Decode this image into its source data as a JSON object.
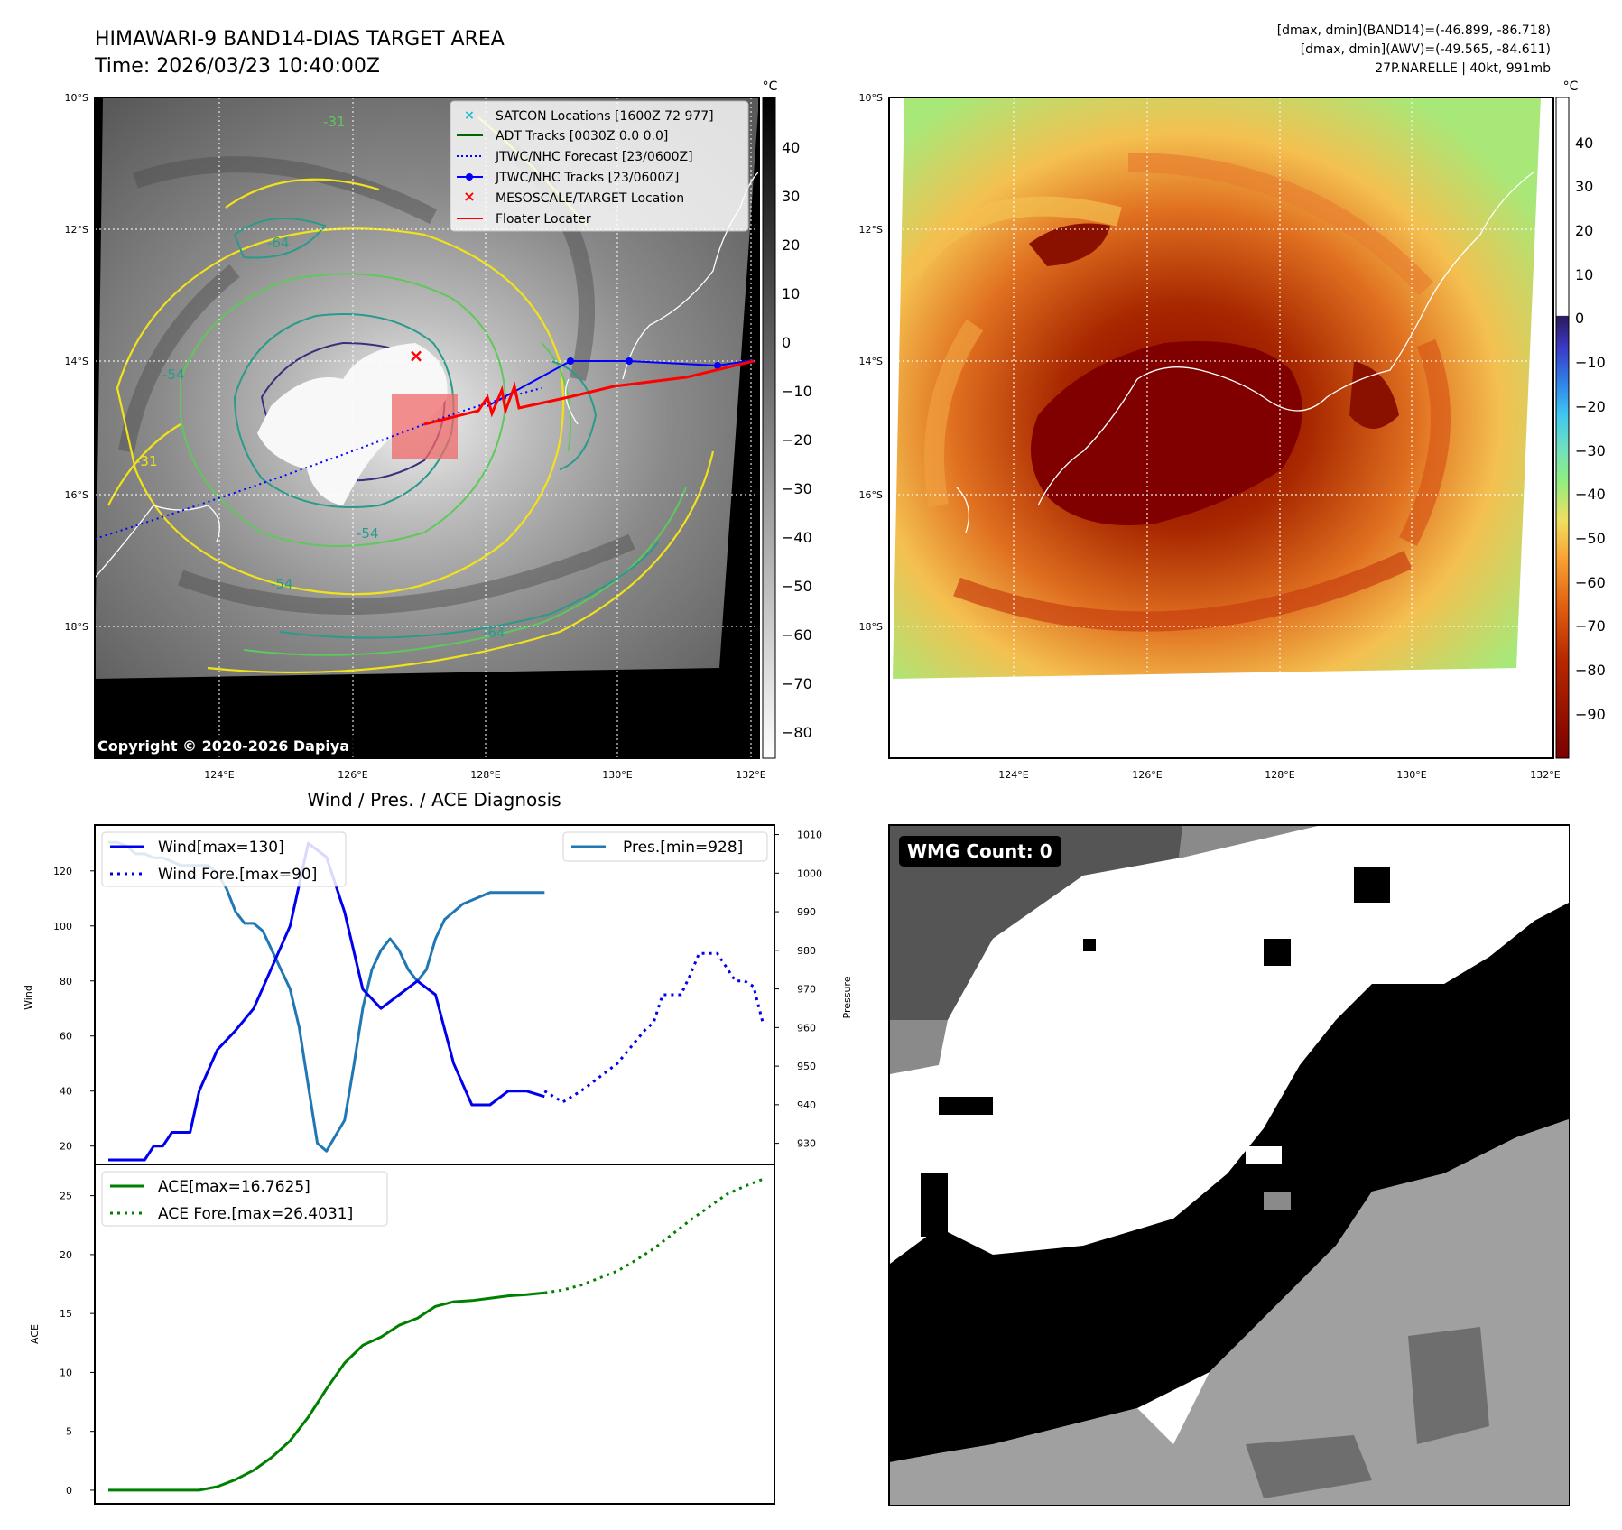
{
  "header": {
    "title_line1": "HIMAWARI-9 BAND14-DIAS TARGET AREA",
    "title_line2": "Time: 2026/03/23 10:40:00Z",
    "right_line1": "[dmax, dmin](BAND14)=(-46.899, -86.718)",
    "right_line2": "[dmax, dmin](AWV)=(-49.565, -84.611)",
    "right_line3": "27P.NARELLE | 40kt, 991mb"
  },
  "maps": {
    "lat_labels": [
      "10°S",
      "12°S",
      "14°S",
      "16°S",
      "18°S"
    ],
    "lon_labels": [
      "124°E",
      "126°E",
      "128°E",
      "130°E",
      "132°E"
    ],
    "copyright": "Copyright © 2020-2026 Dapiya",
    "contour_labels": [
      "-31",
      "-54",
      "-64",
      "-31",
      "-64",
      "-54",
      "-54"
    ],
    "colorbar1": {
      "unit": "°C",
      "ticks": [
        "40",
        "30",
        "20",
        "10",
        "0",
        "−10",
        "−20",
        "−30",
        "−40",
        "−50",
        "−60",
        "−70",
        "−80"
      ]
    },
    "colorbar2": {
      "unit": "°C",
      "ticks": [
        "40",
        "30",
        "20",
        "10",
        "0",
        "−10",
        "−20",
        "−30",
        "−40",
        "−50",
        "−60",
        "−70",
        "−80",
        "−90"
      ]
    },
    "legend": [
      {
        "label": "SATCON Locations [1600Z 72 977]",
        "color": "#17becf"
      },
      {
        "label": "ADT Tracks [0030Z 0.0 0.0]",
        "color": "#006400"
      },
      {
        "label": "JTWC/NHC Forecast [23/0600Z]",
        "color": "#0000ff"
      },
      {
        "label": "JTWC/NHC Tracks [23/0600Z]",
        "color": "#0000ff"
      },
      {
        "label": "MESOSCALE/TARGET Location",
        "color": "#ff0000"
      },
      {
        "label": "Floater Locater",
        "color": "#ff0000"
      }
    ]
  },
  "wmg": {
    "label": "WMG Count: 0"
  },
  "chart_data": [
    {
      "type": "line",
      "title": "Wind / Pres. / ACE Diagnosis",
      "ylabel": "Wind",
      "y2label": "Pressure",
      "ylim": [
        14,
        136
      ],
      "y2lim": [
        925,
        1012
      ],
      "yticks": [
        20,
        40,
        60,
        80,
        100,
        120
      ],
      "y2ticks": [
        930,
        940,
        950,
        960,
        970,
        980,
        990,
        1000,
        1010
      ],
      "x": [
        0,
        1,
        2,
        3,
        4,
        5,
        6,
        7,
        8,
        9,
        10,
        11,
        12,
        13,
        14,
        15,
        16,
        17,
        18,
        19,
        20,
        21,
        22,
        23,
        24,
        25,
        26,
        27,
        28,
        29,
        30,
        31,
        32,
        33,
        34,
        35,
        36,
        37,
        38,
        39,
        40,
        41,
        42,
        43,
        44,
        45,
        46,
        47,
        48,
        49,
        50,
        51,
        52,
        53,
        54,
        55,
        56,
        57,
        58,
        59,
        60,
        61,
        62,
        63,
        64,
        65,
        66,
        67,
        68,
        69,
        70,
        71,
        72
      ],
      "series": [
        {
          "name": "Wind[max=130]",
          "axis": "left",
          "color": "#0000ee",
          "style": "solid",
          "x": [
            0,
            2,
            4,
            5,
            6,
            7,
            8,
            9,
            10,
            12,
            14,
            16,
            18,
            20,
            22,
            24,
            26,
            28,
            30,
            32,
            34,
            36,
            38,
            40,
            42,
            44,
            46,
            48,
            50,
            51,
            52
          ],
          "values": [
            15,
            15,
            15,
            20,
            20,
            25,
            25,
            25,
            40,
            55,
            62,
            70,
            85,
            100,
            130,
            125,
            105,
            77,
            70,
            75,
            80,
            75,
            50,
            35,
            35,
            40,
            40,
            38,
            null,
            null,
            null
          ]
        },
        {
          "name": "Wind Fore.[max=90]",
          "axis": "left",
          "color": "#0000ee",
          "style": "dotted",
          "x": [
            48,
            50,
            52,
            54,
            56,
            58,
            59,
            60,
            61,
            62,
            63,
            64,
            65,
            66,
            67,
            68,
            69,
            70,
            71,
            72
          ],
          "values": [
            40,
            36,
            40,
            45,
            50,
            58,
            62,
            65,
            75,
            75,
            75,
            82,
            90,
            90,
            90,
            85,
            80,
            80,
            78,
            65
          ]
        },
        {
          "name": "Pres.[min=928]",
          "axis": "right",
          "color": "#1f77b4",
          "style": "solid",
          "x": [
            0,
            1,
            2,
            3,
            4,
            5,
            6,
            7,
            8,
            9,
            10,
            11,
            12,
            13,
            14,
            15,
            16,
            17,
            18,
            19,
            20,
            21,
            22,
            23,
            24,
            25,
            26,
            27,
            28,
            29,
            30,
            31,
            32,
            33,
            34,
            35,
            36,
            37,
            38,
            39,
            40,
            41,
            42,
            43,
            44,
            45,
            46,
            47,
            48
          ],
          "values": [
            1008,
            1008,
            1007,
            1005,
            1005,
            1004,
            1004,
            1003,
            1002,
            1002,
            1002,
            1002,
            1000,
            996,
            990,
            987,
            987,
            985,
            980,
            975,
            970,
            960,
            945,
            930,
            928,
            932,
            936,
            950,
            965,
            975,
            980,
            983,
            980,
            975,
            972,
            975,
            983,
            988,
            990,
            992,
            993,
            994,
            995,
            995,
            995,
            995,
            995,
            995,
            995
          ]
        },
        {
          "name": "ACE[max=16.7625]",
          "axis": "ace",
          "color": "#008000",
          "style": "solid",
          "x": [
            0,
            2,
            4,
            6,
            8,
            10,
            12,
            14,
            16,
            18,
            20,
            22,
            24,
            26,
            28,
            30,
            32,
            34,
            36,
            38,
            40,
            42,
            44,
            46,
            48
          ],
          "values": [
            0,
            0,
            0,
            0,
            0,
            0,
            0.3,
            0.9,
            1.7,
            2.8,
            4.2,
            6.2,
            8.6,
            10.8,
            12.3,
            13.0,
            14.0,
            14.6,
            15.6,
            16.0,
            16.1,
            16.3,
            16.5,
            16.6,
            16.76
          ]
        },
        {
          "name": "ACE Fore.[max=26.4031]",
          "axis": "ace",
          "color": "#008000",
          "style": "dotted",
          "x": [
            48,
            50,
            52,
            54,
            56,
            58,
            60,
            62,
            64,
            66,
            68,
            70,
            72
          ],
          "values": [
            16.76,
            17.0,
            17.4,
            18.0,
            18.6,
            19.5,
            20.5,
            21.7,
            22.9,
            24.0,
            25.1,
            25.8,
            26.4
          ]
        }
      ],
      "ace_ylabel": "ACE",
      "ace_ylim": [
        -1,
        27.5
      ],
      "ace_yticks": [
        0,
        5,
        10,
        15,
        20,
        25
      ]
    }
  ]
}
